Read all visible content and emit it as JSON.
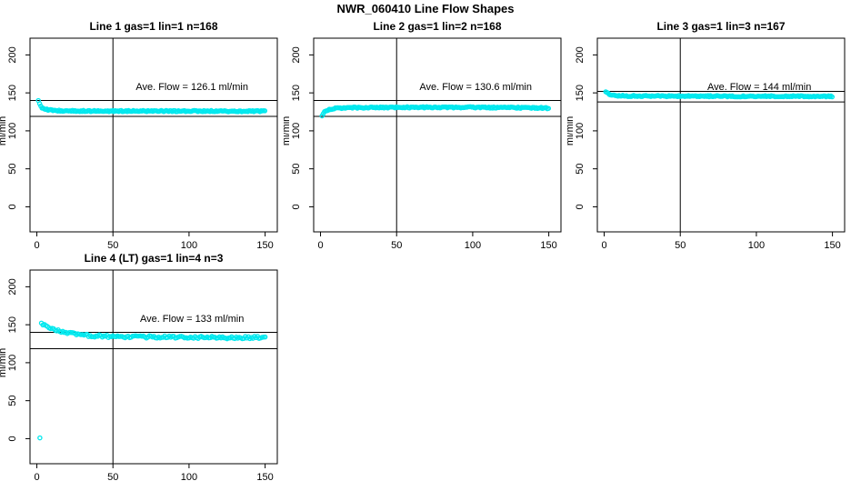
{
  "title": "NWR_060410  Line Flow Shapes",
  "accent_color": "#00E8EE",
  "axis_color": "#000000",
  "chart_data": [
    {
      "type": "scatter",
      "title": "Line 1 gas=1 lin=1 n=168",
      "annotation": "Ave. Flow =  126.1  ml/min",
      "ylabel": "ml/min",
      "xticks": [
        0,
        50,
        100,
        150
      ],
      "yticks": [
        0,
        50,
        100,
        150,
        200
      ],
      "xlim": [
        -4.5,
        158
      ],
      "ylim": [
        -33,
        222
      ],
      "vline_x": 50,
      "hlines": [
        140,
        119
      ],
      "legend": "none",
      "grid": "off",
      "point_color": "#00E8EE",
      "noise": 0.9,
      "step": 0.8,
      "profile": [
        [
          1,
          139
        ],
        [
          2,
          134
        ],
        [
          3,
          131
        ],
        [
          5,
          129
        ],
        [
          8,
          127.5
        ],
        [
          12,
          126.8
        ],
        [
          20,
          126.3
        ],
        [
          40,
          126.1
        ],
        [
          80,
          126.0
        ],
        [
          150,
          125.9
        ]
      ],
      "extra_points": []
    },
    {
      "type": "scatter",
      "title": "Line 2 gas=1 lin=2 n=168",
      "annotation": "Ave. Flow =  130.6  ml/min",
      "ylabel": "ml/min",
      "xticks": [
        0,
        50,
        100,
        150
      ],
      "yticks": [
        0,
        50,
        100,
        150,
        200
      ],
      "xlim": [
        -4.5,
        158
      ],
      "ylim": [
        -33,
        222
      ],
      "vline_x": 50,
      "hlines": [
        140,
        119
      ],
      "legend": "none",
      "grid": "off",
      "point_color": "#00E8EE",
      "noise": 0.9,
      "step": 0.8,
      "profile": [
        [
          1,
          119
        ],
        [
          2,
          123
        ],
        [
          3,
          125.5
        ],
        [
          5,
          128
        ],
        [
          8,
          129.5
        ],
        [
          15,
          130.5
        ],
        [
          50,
          131
        ],
        [
          100,
          131
        ],
        [
          148,
          130.2
        ],
        [
          150,
          129.8
        ]
      ],
      "extra_points": []
    },
    {
      "type": "scatter",
      "title": "Line 3 gas=1 lin=3 n=167",
      "annotation": "Ave. Flow =  144  ml/min",
      "ylabel": "ml/min",
      "xticks": [
        0,
        50,
        100,
        150
      ],
      "yticks": [
        0,
        50,
        100,
        150,
        200
      ],
      "xlim": [
        -4.5,
        158
      ],
      "ylim": [
        -33,
        222
      ],
      "vline_x": 50,
      "hlines": [
        152,
        138
      ],
      "legend": "none",
      "grid": "off",
      "point_color": "#00E8EE",
      "noise": 0.8,
      "step": 0.8,
      "profile": [
        [
          1,
          152
        ],
        [
          2,
          150
        ],
        [
          4,
          148
        ],
        [
          8,
          146.5
        ],
        [
          15,
          146
        ],
        [
          40,
          145.7
        ],
        [
          100,
          145.5
        ],
        [
          150,
          145.5
        ]
      ],
      "extra_points": []
    },
    {
      "type": "scatter",
      "title": "Line 4 (LT) gas=1 lin=4 n=3",
      "annotation": "Ave. Flow =  133  ml/min",
      "ylabel": "ml/min",
      "xticks": [
        0,
        50,
        100,
        150
      ],
      "yticks": [
        0,
        50,
        100,
        150,
        200
      ],
      "xlim": [
        -4.5,
        158
      ],
      "ylim": [
        -33,
        222
      ],
      "vline_x": 50,
      "hlines": [
        140,
        118.5
      ],
      "legend": "none",
      "grid": "off",
      "point_color": "#00E8EE",
      "noise": 1.6,
      "step": 1.0,
      "profile": [
        [
          3,
          152
        ],
        [
          5,
          149.5
        ],
        [
          8,
          146.5
        ],
        [
          12,
          143.5
        ],
        [
          18,
          140
        ],
        [
          25,
          137.5
        ],
        [
          35,
          135.5
        ],
        [
          50,
          134.5
        ],
        [
          80,
          133.8
        ],
        [
          120,
          133
        ],
        [
          150,
          133.5
        ]
      ],
      "extra_points": [
        [
          2,
          1
        ]
      ]
    }
  ]
}
